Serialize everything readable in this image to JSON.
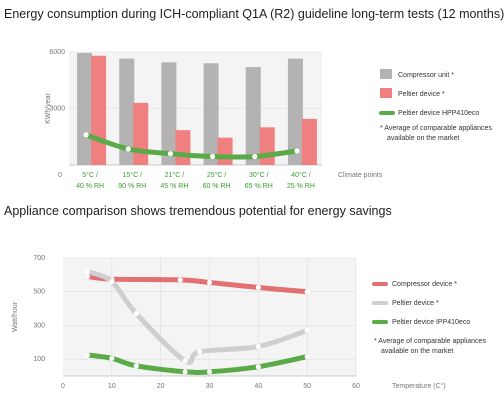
{
  "chart_data": [
    {
      "type": "bar",
      "title": "Energy consumption during ICH-compliant Q1A (R2) guideline long-term tests (12 months)",
      "ylabel": "KWh/year",
      "xlabel": "Climate points",
      "ylim": [
        0,
        6000
      ],
      "yticks": [
        "6000",
        "3000",
        "0"
      ],
      "categories": [
        [
          "5°C /",
          "40 % RH"
        ],
        [
          "15°C /",
          "90 % RH"
        ],
        [
          "21°C /",
          "45 % RH"
        ],
        [
          "25°C /",
          "60 % RH"
        ],
        [
          "30°C /",
          "65 % RH"
        ],
        [
          "40°C /",
          "25 % RH"
        ]
      ],
      "series": [
        {
          "name": "Compressor unit *",
          "kind": "bar",
          "color": "#b3b3b3",
          "values": [
            5950,
            5650,
            5450,
            5400,
            5200,
            5650
          ]
        },
        {
          "name": "Peltier device *",
          "kind": "bar",
          "color": "#f08080",
          "values": [
            5800,
            3300,
            1850,
            1450,
            2000,
            2450
          ]
        },
        {
          "name": "Peltier device HPP410eco",
          "kind": "line",
          "color": "#5aab48",
          "values": [
            1600,
            850,
            600,
            450,
            450,
            750
          ]
        }
      ],
      "footnote": [
        "* Average of comparable appliances",
        "available on the market"
      ],
      "grid": true,
      "legend": "right"
    },
    {
      "type": "line",
      "title": "Appliance comparison shows tremendous potential for energy savings",
      "ylabel": "Watt/hour",
      "xlabel": "Temperature (C°)",
      "xlim": [
        0,
        60
      ],
      "ylim": [
        0,
        700
      ],
      "xticks": [
        0,
        10,
        20,
        30,
        40,
        50,
        60
      ],
      "yticks": [
        100,
        300,
        500,
        700
      ],
      "series": [
        {
          "name": "Compressor device *",
          "color": "#e27070",
          "x": [
            5,
            10,
            24,
            30,
            40,
            50
          ],
          "y": [
            590,
            575,
            570,
            555,
            525,
            500
          ]
        },
        {
          "name": "Peltier device *",
          "color": "#cfcfcf",
          "x": [
            5,
            10,
            15,
            25,
            28,
            40,
            50
          ],
          "y": [
            620,
            560,
            370,
            90,
            145,
            175,
            270
          ]
        },
        {
          "name": "Peltier device IPP410eco",
          "color": "#5aab48",
          "x": [
            5,
            10,
            15,
            25,
            30,
            40,
            50
          ],
          "y": [
            125,
            105,
            60,
            25,
            25,
            55,
            115
          ]
        }
      ],
      "footnote": [
        "* Average of comparable appliances",
        "available on the market"
      ],
      "grid": true,
      "legend": "right"
    }
  ]
}
